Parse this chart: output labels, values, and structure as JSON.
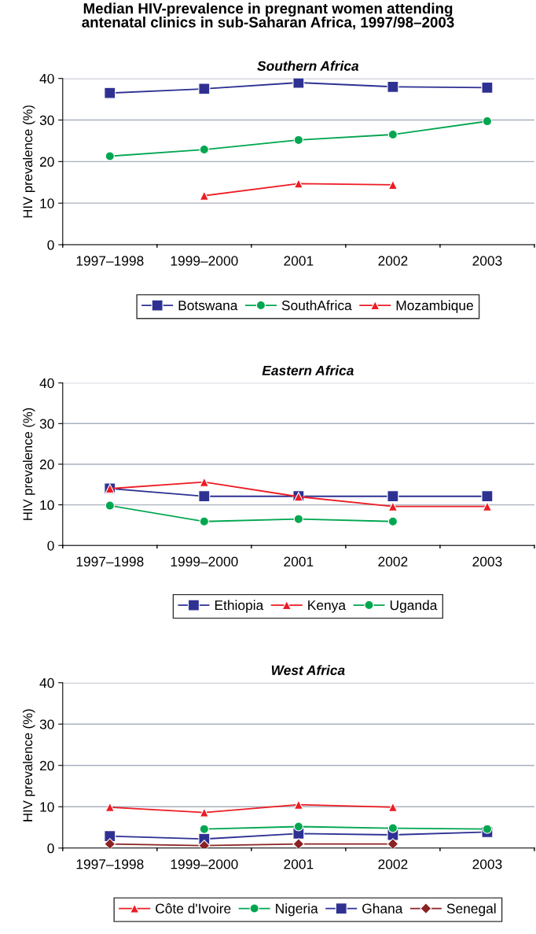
{
  "chart_data": [
    {
      "type": "line",
      "title": "Median HIV-prevalence in pregnant women attending\nantenatal clinics in sub-Saharan Africa, 1997/98–2003",
      "subtitle": "Southern Africa",
      "ylabel": "HIV prevalence (%)",
      "categories": [
        "1997–1998",
        "1999–2000",
        "2001",
        "2002",
        "2003"
      ],
      "ylim": [
        0,
        40
      ],
      "yticks": [
        0,
        10,
        20,
        30,
        40
      ],
      "grid": "y",
      "legend": "bottom",
      "series": [
        {
          "name": "Botswana",
          "color": "#2e3192",
          "marker": "square",
          "values": [
            36.5,
            37.5,
            39,
            38,
            37.8
          ]
        },
        {
          "name": "SouthAfrica",
          "color": "#00a650",
          "marker": "circle",
          "values": [
            21.3,
            22.9,
            25.2,
            26.5,
            29.7
          ]
        },
        {
          "name": "Mozambique",
          "color": "#ed1c24",
          "marker": "triangle",
          "values": [
            null,
            11.8,
            14.7,
            14.4,
            null
          ]
        }
      ]
    },
    {
      "type": "line",
      "subtitle": "Eastern Africa",
      "ylabel": "HIV prevalence (%)",
      "categories": [
        "1997–1998",
        "1999–2000",
        "2001",
        "2002",
        "2003"
      ],
      "ylim": [
        0,
        40
      ],
      "yticks": [
        0,
        10,
        20,
        30,
        40
      ],
      "grid": "y",
      "legend": "bottom",
      "series": [
        {
          "name": "Ethiopia",
          "color": "#2e3192",
          "marker": "square",
          "values": [
            14,
            12.1,
            12.1,
            12.1,
            12.1
          ]
        },
        {
          "name": "Kenya",
          "color": "#ed1c24",
          "marker": "triangle",
          "values": [
            14,
            15.6,
            12,
            9.6,
            9.6
          ]
        },
        {
          "name": "Uganda",
          "color": "#00a650",
          "marker": "circle",
          "values": [
            9.8,
            5.9,
            6.5,
            5.9,
            null
          ]
        }
      ]
    },
    {
      "type": "line",
      "subtitle": "West Africa",
      "ylabel": "HIV prevalence (%)",
      "categories": [
        "1997–1998",
        "1999–2000",
        "2001",
        "2002",
        "2003"
      ],
      "ylim": [
        0,
        40
      ],
      "yticks": [
        0,
        10,
        20,
        30,
        40
      ],
      "grid": "y",
      "legend": "bottom",
      "series": [
        {
          "name": "Côte d'Ivoire",
          "color": "#ed1c24",
          "marker": "triangle",
          "values": [
            9.9,
            8.6,
            10.5,
            9.9,
            null
          ]
        },
        {
          "name": "Nigeria",
          "color": "#00a650",
          "marker": "circle",
          "values": [
            null,
            4.6,
            5.2,
            4.8,
            4.6
          ]
        },
        {
          "name": "Ghana",
          "color": "#2e3192",
          "marker": "square",
          "values": [
            2.9,
            2.2,
            3.5,
            3.2,
            3.9
          ]
        },
        {
          "name": "Senegal",
          "color": "#8b2323",
          "marker": "diamond",
          "values": [
            1.0,
            0.6,
            1.0,
            1.0,
            null
          ]
        }
      ]
    }
  ]
}
